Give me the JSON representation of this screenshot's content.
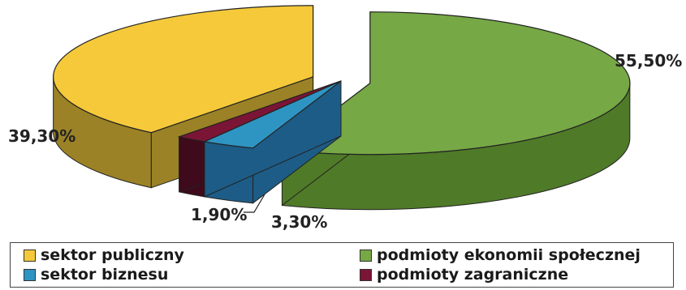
{
  "chart_data": {
    "type": "pie",
    "style": "3d-exploded",
    "slices": [
      {
        "label": "podmioty ekonomii społecznej",
        "value": 55.5,
        "value_label": "55,50%",
        "color": "#76a845",
        "side": "#4f7a28",
        "explode": true
      },
      {
        "label": "sektor biznesu",
        "value": 3.3,
        "value_label": "3,30%",
        "color": "#2e95c3",
        "side": "#1d5c86"
      },
      {
        "label": "podmioty zagraniczne",
        "value": 1.9,
        "value_label": "1,90%",
        "color": "#7b1536",
        "side": "#3f0a1b"
      },
      {
        "label": "sektor publiczny",
        "value": 39.3,
        "value_label": "39,30%",
        "color": "#f5c93a",
        "side": "#9c8226",
        "explode": true
      }
    ],
    "legend": {
      "position": "bottom",
      "items": [
        {
          "label": "sektor publiczny",
          "color": "#f5c93a"
        },
        {
          "label": "podmioty ekonomii społecznej",
          "color": "#76a845"
        },
        {
          "label": "sektor biznesu",
          "color": "#2e95c3"
        },
        {
          "label": "podmioty zagraniczne",
          "color": "#7b1536"
        }
      ]
    }
  }
}
